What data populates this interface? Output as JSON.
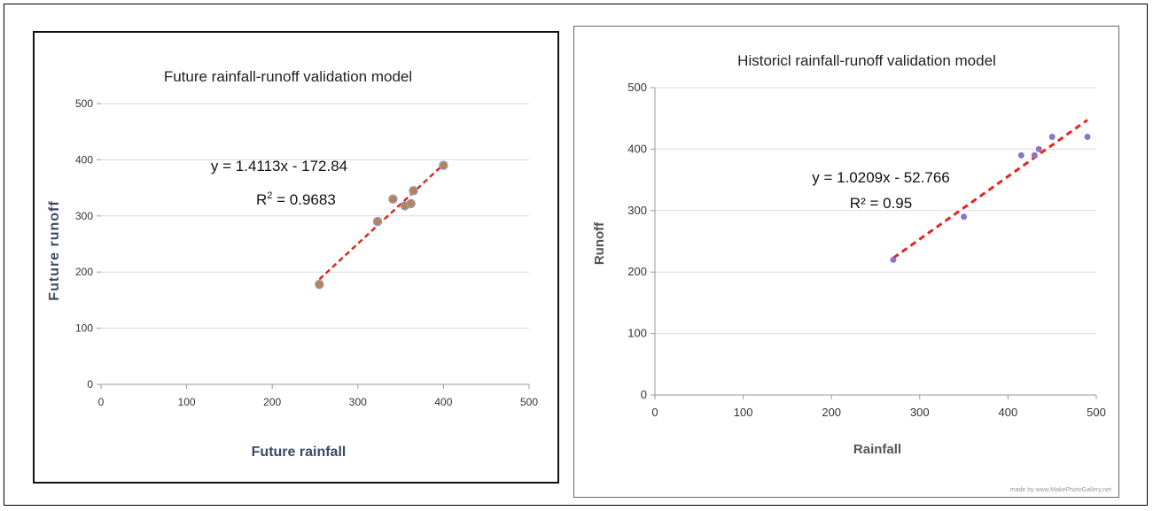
{
  "chart_data": [
    {
      "type": "scatter",
      "title": "Future rainfall-runoff validation model",
      "xlabel": "Future rainfall",
      "ylabel": "Future runoff",
      "xlim": [
        0,
        500
      ],
      "ylim": [
        0,
        500
      ],
      "xticks": [
        0,
        100,
        200,
        300,
        400,
        500
      ],
      "yticks": [
        0,
        100,
        200,
        300,
        400,
        500
      ],
      "grid": "horizontal",
      "points": [
        {
          "x": 255,
          "y": 178
        },
        {
          "x": 323,
          "y": 290
        },
        {
          "x": 341,
          "y": 330
        },
        {
          "x": 355,
          "y": 318
        },
        {
          "x": 362,
          "y": 322
        },
        {
          "x": 365,
          "y": 345
        },
        {
          "x": 400,
          "y": 390
        }
      ],
      "trendline": {
        "slope": 1.4113,
        "intercept": -172.84,
        "x_range": [
          255,
          400
        ]
      },
      "equation": "y = 1.4113x - 172.84",
      "r2_label": "R",
      "r2_sup": "2",
      "r2_value": " = 0.9683",
      "colors": {
        "marker_fill": "#c0804a",
        "marker_stroke": "#8e9cc8",
        "trend": "#d9281e"
      }
    },
    {
      "type": "scatter",
      "title": "Historicl rainfall-runoff validation model",
      "xlabel": "Rainfall",
      "ylabel": "Runoff",
      "xlim": [
        0,
        500
      ],
      "ylim": [
        0,
        500
      ],
      "xticks": [
        0,
        100,
        200,
        300,
        400,
        500
      ],
      "yticks": [
        0,
        100,
        200,
        300,
        400,
        500
      ],
      "grid": "horizontal",
      "points": [
        {
          "x": 270,
          "y": 220
        },
        {
          "x": 350,
          "y": 290
        },
        {
          "x": 415,
          "y": 390
        },
        {
          "x": 430,
          "y": 390
        },
        {
          "x": 435,
          "y": 400
        },
        {
          "x": 450,
          "y": 420
        },
        {
          "x": 490,
          "y": 420
        }
      ],
      "trendline": {
        "slope": 1.0209,
        "intercept": -52.766,
        "x_range": [
          270,
          490
        ]
      },
      "equation": "y = 1.0209x - 52.766",
      "r2_label": "R² = 0.95",
      "colors": {
        "marker_fill": "#8b76c4",
        "trend": "#e8221c"
      }
    }
  ],
  "credit": "made by www.MakePhotoGallery.net"
}
